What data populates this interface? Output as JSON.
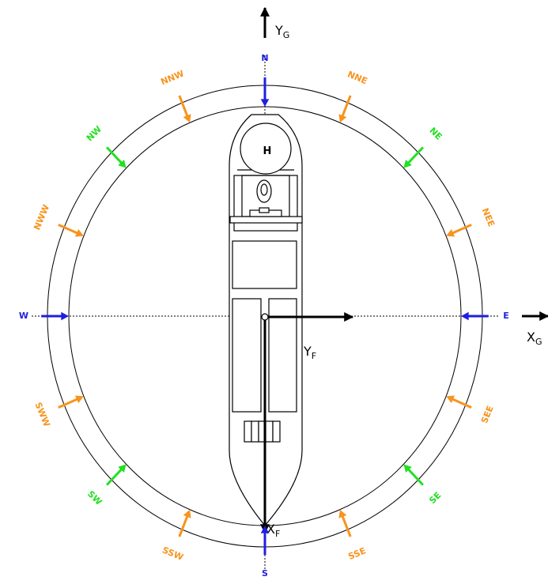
{
  "directions": [
    {
      "label": "N",
      "color": "#1f1fe0"
    },
    {
      "label": "NNE",
      "color": "#f7941d"
    },
    {
      "label": "NE",
      "color": "#22e022"
    },
    {
      "label": "NEE",
      "color": "#f7941d"
    },
    {
      "label": "E",
      "color": "#1f1fe0"
    },
    {
      "label": "SEE",
      "color": "#f7941d"
    },
    {
      "label": "SE",
      "color": "#22e022"
    },
    {
      "label": "SSE",
      "color": "#f7941d"
    },
    {
      "label": "S",
      "color": "#1f1fe0"
    },
    {
      "label": "SSW",
      "color": "#f7941d"
    },
    {
      "label": "SW",
      "color": "#22e022"
    },
    {
      "label": "SWW",
      "color": "#f7941d"
    },
    {
      "label": "W",
      "color": "#1f1fe0"
    },
    {
      "label": "NWW",
      "color": "#f7941d"
    },
    {
      "label": "NW",
      "color": "#22e022"
    },
    {
      "label": "NNW",
      "color": "#f7941d"
    }
  ],
  "ship_label": "H",
  "axes": {
    "yg": {
      "letter": "Y",
      "subscript": "G"
    },
    "xg": {
      "letter": "X",
      "subscript": "G"
    },
    "yf": {
      "letter": "Y",
      "subscript": "F"
    },
    "xf": {
      "letter": "X",
      "subscript": "F"
    }
  }
}
